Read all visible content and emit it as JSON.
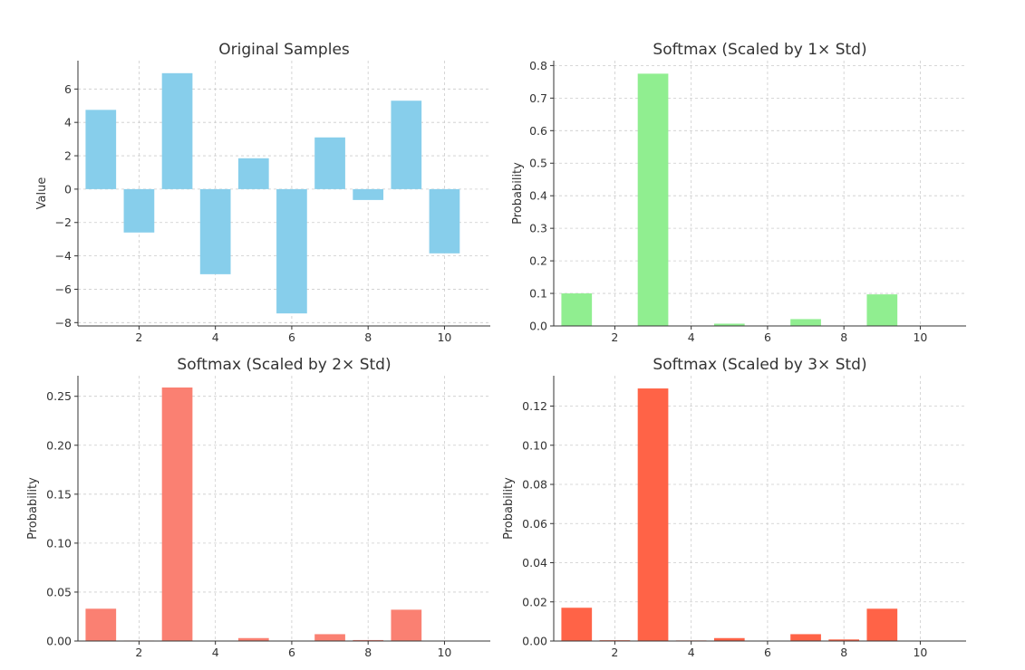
{
  "chart_data": [
    {
      "type": "bar",
      "title": "Original Samples",
      "xlabel": "",
      "ylabel": "Value",
      "x": [
        1,
        2,
        3,
        4,
        5,
        6,
        7,
        8,
        9,
        10
      ],
      "values": [
        4.75,
        -2.6,
        6.95,
        -5.1,
        1.85,
        -7.45,
        3.1,
        -0.65,
        5.3,
        -3.85
      ],
      "xlim": [
        0.4,
        11.2
      ],
      "ylim": [
        -8.2,
        7.7
      ],
      "xticks": [
        2,
        4,
        6,
        8,
        10
      ],
      "xtick_labels": [
        "2",
        "4",
        "6",
        "8",
        "10"
      ],
      "yticks": [
        -8,
        -6,
        -4,
        -2,
        0,
        2,
        4,
        6
      ],
      "ytick_labels": [
        "−8",
        "−6",
        "−4",
        "−2",
        "0",
        "2",
        "4",
        "6"
      ],
      "color": "#87CEEB",
      "grid": true
    },
    {
      "type": "bar",
      "title": "Softmax (Scaled by 1× Std)",
      "xlabel": "",
      "ylabel": "Probability",
      "x": [
        1,
        2,
        3,
        4,
        5,
        6,
        7,
        8,
        9,
        10
      ],
      "values": [
        0.1,
        0.0003,
        0.775,
        0.0001,
        0.007,
        4e-05,
        0.021,
        0.0007,
        0.097,
        0.0001
      ],
      "xlim": [
        0.4,
        11.2
      ],
      "ylim": [
        0,
        0.815
      ],
      "xticks": [
        2,
        4,
        6,
        8,
        10
      ],
      "xtick_labels": [
        "2",
        "4",
        "6",
        "8",
        "10"
      ],
      "yticks": [
        0,
        0.1,
        0.2,
        0.3,
        0.4,
        0.5,
        0.6,
        0.7,
        0.8
      ],
      "ytick_labels": [
        "0.0",
        "0.1",
        "0.2",
        "0.3",
        "0.4",
        "0.5",
        "0.6",
        "0.7",
        "0.8"
      ],
      "color": "#90EE90",
      "grid": true
    },
    {
      "type": "bar",
      "title": "Softmax (Scaled by 2× Std)",
      "xlabel": "",
      "ylabel": "Probability",
      "x": [
        1,
        2,
        3,
        4,
        5,
        6,
        7,
        8,
        9,
        10
      ],
      "values": [
        0.033,
        0.0005,
        0.259,
        0.0004,
        0.003,
        0.0001,
        0.007,
        0.001,
        0.032,
        0.0003
      ],
      "xlim": [
        0.4,
        11.2
      ],
      "ylim": [
        0,
        0.271
      ],
      "xticks": [
        2,
        4,
        6,
        8,
        10
      ],
      "xtick_labels": [
        "2",
        "4",
        "6",
        "8",
        "10"
      ],
      "yticks": [
        0,
        0.05,
        0.1,
        0.15,
        0.2,
        0.25
      ],
      "ytick_labels": [
        "0.00",
        "0.05",
        "0.10",
        "0.15",
        "0.20",
        "0.25"
      ],
      "color": "#FA8072",
      "grid": true
    },
    {
      "type": "bar",
      "title": "Softmax (Scaled by 3× Std)",
      "xlabel": "",
      "ylabel": "Probability",
      "x": [
        1,
        2,
        3,
        4,
        5,
        6,
        7,
        8,
        9,
        10
      ],
      "values": [
        0.017,
        0.0004,
        0.129,
        0.0003,
        0.0015,
        0.0001,
        0.0035,
        0.0008,
        0.0165,
        0.0002
      ],
      "xlim": [
        0.4,
        11.2
      ],
      "ylim": [
        0,
        0.1355
      ],
      "xticks": [
        2,
        4,
        6,
        8,
        10
      ],
      "xtick_labels": [
        "2",
        "4",
        "6",
        "8",
        "10"
      ],
      "yticks": [
        0,
        0.02,
        0.04,
        0.06,
        0.08,
        0.1,
        0.12
      ],
      "ytick_labels": [
        "0.00",
        "0.02",
        "0.04",
        "0.06",
        "0.08",
        "0.10",
        "0.12"
      ],
      "color": "#FF6347",
      "grid": true
    }
  ]
}
